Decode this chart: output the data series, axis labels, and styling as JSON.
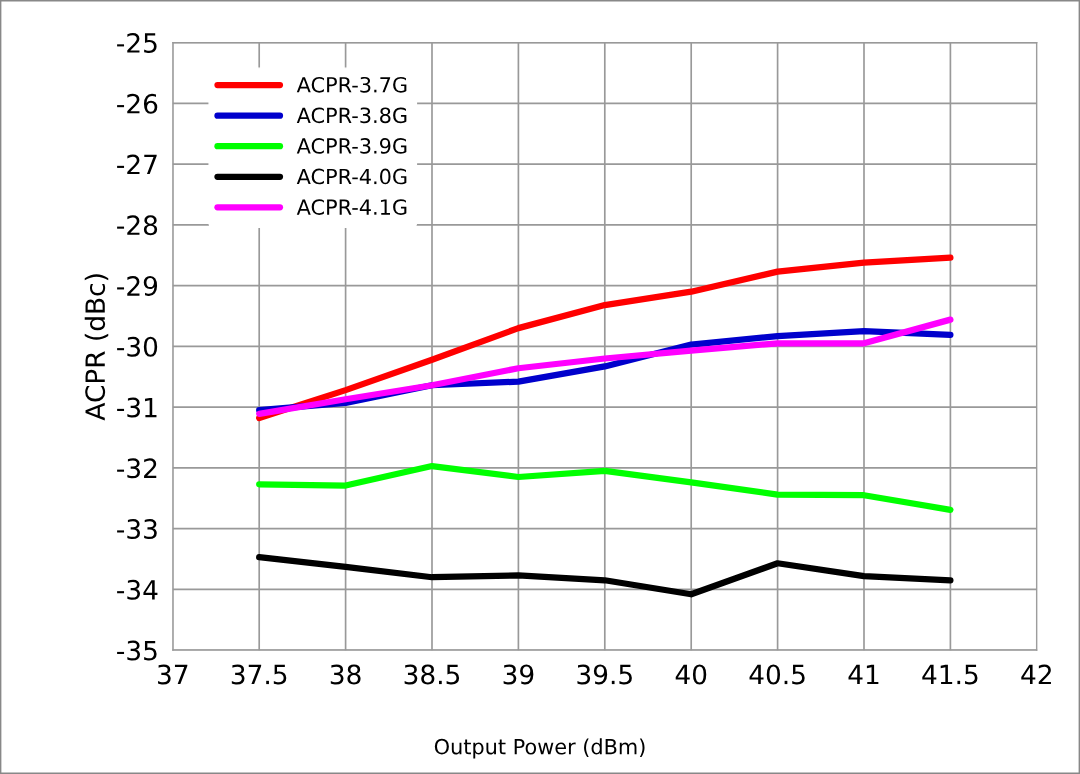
{
  "chart_data": {
    "type": "line",
    "xlabel": "Output Power (dBm)",
    "ylabel": "ACPR (dBc)",
    "x": [
      37.5,
      38,
      38.5,
      39,
      39.5,
      40,
      40.5,
      41,
      41.5
    ],
    "series": [
      {
        "name": "ACPR-3.7G",
        "color": "#ff0000",
        "values": [
          -31.18,
          -30.72,
          -30.22,
          -29.7,
          -29.32,
          -29.1,
          -28.77,
          -28.62,
          -28.54
        ]
      },
      {
        "name": "ACPR-3.8G",
        "color": "#0000cc",
        "values": [
          -31.05,
          -30.93,
          -30.64,
          -30.58,
          -30.33,
          -29.97,
          -29.83,
          -29.75,
          -29.81
        ]
      },
      {
        "name": "ACPR-3.9G",
        "color": "#00ff00",
        "values": [
          -32.27,
          -32.29,
          -31.97,
          -32.15,
          -32.05,
          -32.24,
          -32.44,
          -32.45,
          -32.69
        ]
      },
      {
        "name": "ACPR-4.0G",
        "color": "#000000",
        "values": [
          -33.47,
          -33.63,
          -33.8,
          -33.77,
          -33.85,
          -34.08,
          -33.57,
          -33.78,
          -33.85
        ]
      },
      {
        "name": "ACPR-4.1G",
        "color": "#ff00ff",
        "values": [
          -31.11,
          -30.87,
          -30.64,
          -30.36,
          -30.2,
          -30.07,
          -29.95,
          -29.95,
          -29.56
        ]
      }
    ],
    "xlim": [
      37,
      42
    ],
    "xticks": [
      37,
      37.5,
      38,
      38.5,
      39,
      39.5,
      40,
      40.5,
      41,
      41.5,
      42
    ],
    "ylim": [
      -35,
      -25
    ],
    "yticks": [
      -35,
      -34,
      -33,
      -32,
      -31,
      -30,
      -29,
      -28,
      -27,
      -26,
      -25
    ],
    "grid": true,
    "legend": "top left",
    "marker": "none",
    "line_style": "solid"
  }
}
